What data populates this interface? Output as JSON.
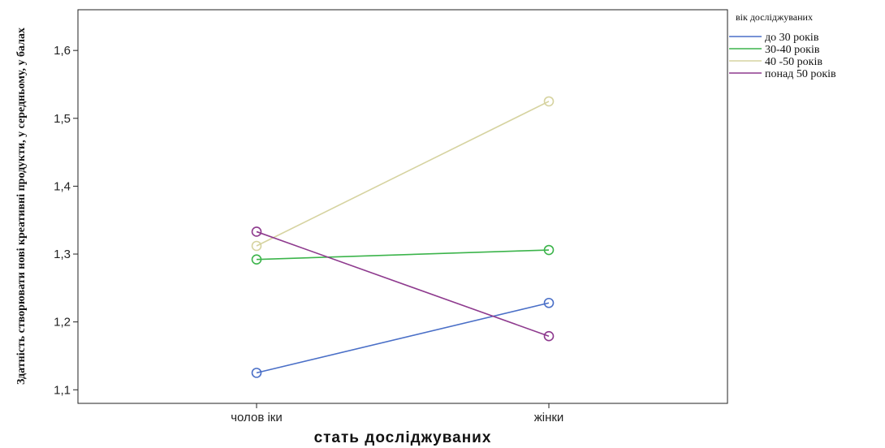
{
  "chart_data": {
    "type": "line",
    "xlabel": "стать досліджуваних",
    "ylabel": "Здатність створювати нові креативні продукти, у середньому, у балах",
    "categories": [
      "чолов іки",
      "жінки"
    ],
    "ylim": [
      1.08,
      1.66
    ],
    "yticks": [
      1.1,
      1.2,
      1.3,
      1.4,
      1.5,
      1.6
    ],
    "ytick_labels": [
      "1,1",
      "1,2",
      "1,3",
      "1,4",
      "1,5",
      "1,6"
    ],
    "grid": false,
    "legend": {
      "title": "вік досліджуваних",
      "position": "right"
    },
    "series": [
      {
        "name": "до 30 років",
        "color": "#4a6fc7",
        "values": [
          1.125,
          1.228
        ]
      },
      {
        "name": "30-40 років",
        "color": "#3cb44b",
        "values": [
          1.292,
          1.306
        ]
      },
      {
        "name": "40 -50 років",
        "color": "#d6d3a0",
        "values": [
          1.312,
          1.525
        ]
      },
      {
        "name": "понад 50 років",
        "color": "#8e3a8e",
        "values": [
          1.333,
          1.179
        ]
      }
    ]
  }
}
